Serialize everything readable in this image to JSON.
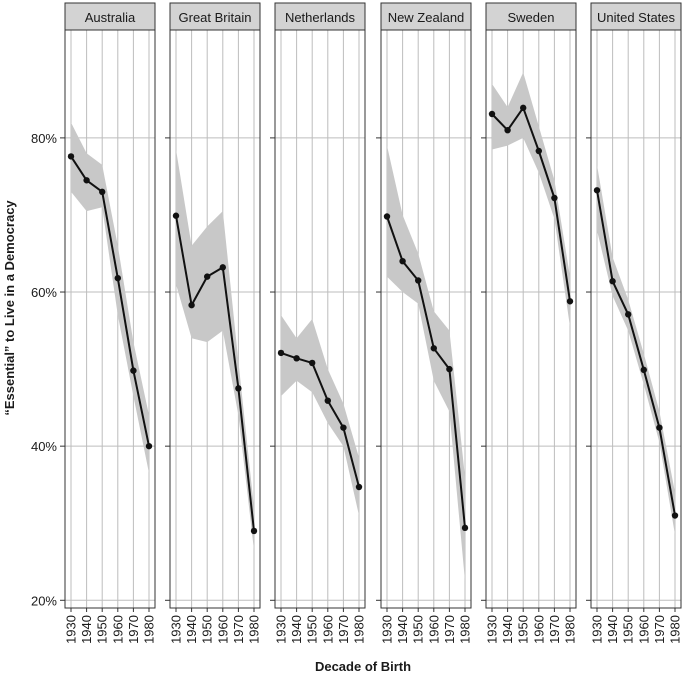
{
  "chart_data": {
    "type": "line",
    "layout": "small-multiples",
    "xlabel": "Decade of Birth",
    "ylabel": "“Essential” to Live in a Democracy",
    "x": [
      1930,
      1940,
      1950,
      1960,
      1970,
      1980
    ],
    "x_tick_labels": [
      "1930",
      "1940",
      "1950",
      "1960",
      "1970",
      "1980"
    ],
    "ylim": [
      19,
      94
    ],
    "y_ticks": [
      20,
      40,
      60,
      80
    ],
    "y_tick_labels": [
      "20%",
      "40%",
      "60%",
      "80%"
    ],
    "grid": true,
    "band": "confidence interval (shaded)",
    "panels": [
      {
        "title": "Australia",
        "values": [
          77.6,
          74.5,
          73.0,
          61.8,
          49.8,
          40.0
        ],
        "lower": [
          73.0,
          70.5,
          71.0,
          57.0,
          46.5,
          36.5
        ],
        "upper": [
          82.0,
          78.0,
          76.5,
          66.0,
          53.5,
          44.0
        ]
      },
      {
        "title": "Great Britain",
        "values": [
          69.9,
          58.3,
          62.0,
          63.2,
          47.5,
          29.0
        ],
        "lower": [
          61.0,
          54.0,
          53.5,
          55.0,
          44.0,
          26.5
        ],
        "upper": [
          78.5,
          66.0,
          68.5,
          70.5,
          51.0,
          32.0
        ]
      },
      {
        "title": "Netherlands",
        "values": [
          52.1,
          51.4,
          50.8,
          45.9,
          42.4,
          34.7
        ],
        "lower": [
          46.5,
          48.5,
          47.0,
          43.0,
          40.0,
          31.0
        ],
        "upper": [
          57.0,
          54.0,
          56.5,
          50.0,
          45.5,
          38.5
        ]
      },
      {
        "title": "New Zealand",
        "values": [
          69.8,
          64.0,
          61.5,
          52.7,
          50.0,
          29.4
        ],
        "lower": [
          62.0,
          60.0,
          58.5,
          48.5,
          44.5,
          22.5
        ],
        "upper": [
          79.0,
          70.0,
          65.0,
          57.5,
          55.0,
          36.0
        ]
      },
      {
        "title": "Sweden",
        "values": [
          83.1,
          81.0,
          83.9,
          78.3,
          72.2,
          58.8
        ],
        "lower": [
          78.5,
          79.0,
          80.0,
          75.5,
          69.5,
          55.5
        ],
        "upper": [
          87.0,
          84.0,
          88.5,
          81.5,
          74.5,
          62.0
        ]
      },
      {
        "title": "United States",
        "values": [
          73.2,
          61.4,
          57.1,
          49.9,
          42.4,
          31.0
        ],
        "lower": [
          68.0,
          59.5,
          55.0,
          48.0,
          40.5,
          28.5
        ],
        "upper": [
          76.5,
          64.5,
          59.0,
          52.0,
          44.5,
          34.0
        ]
      }
    ]
  }
}
